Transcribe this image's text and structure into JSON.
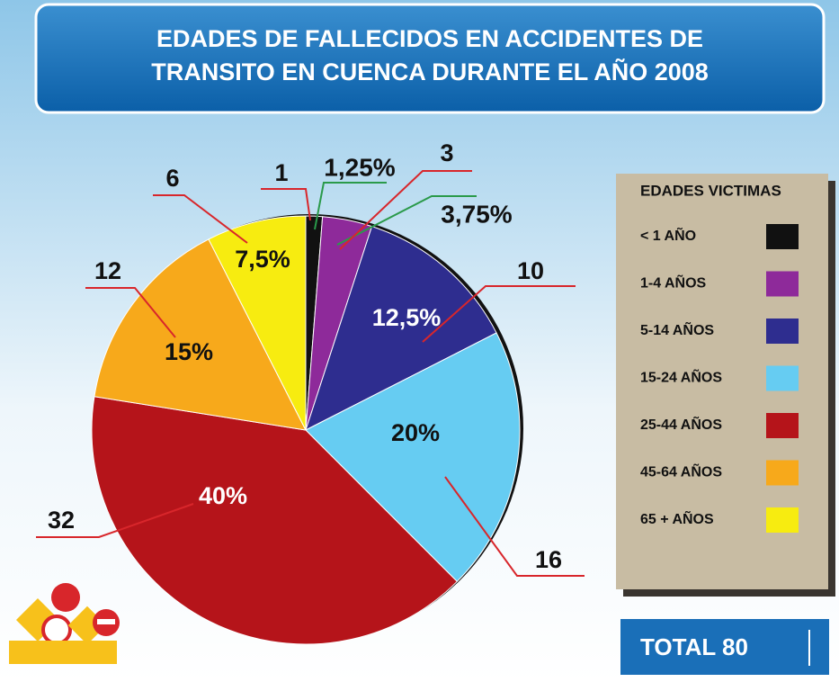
{
  "chart_data": {
    "type": "pie",
    "title": [
      "EDADES DE  FALLECIDOS EN ACCIDENTES DE",
      "TRANSITO EN CUENCA DURANTE EL AÑO 2008"
    ],
    "legend_title": "EDADES VICTIMAS",
    "categories": [
      "< 1 AÑO",
      "1-4 AÑOS",
      "5-14 AÑOS",
      "15-24 AÑOS",
      "25-44 AÑOS",
      "45-64 AÑOS",
      "65 + AÑOS"
    ],
    "values": [
      1.25,
      3.75,
      12.5,
      20,
      40,
      15,
      7.5
    ],
    "value_labels": [
      "1,25%",
      "3,75%",
      "12,5%",
      "20%",
      "40%",
      "15%",
      "7,5%"
    ],
    "counts": [
      1,
      3,
      10,
      16,
      32,
      12,
      6
    ],
    "colors": [
      "#111111",
      "#8e2a9a",
      "#2e2d8f",
      "#66ccf2",
      "#b5141a",
      "#f7a91b",
      "#f7ec10"
    ],
    "total_label": "TOTAL 80",
    "legend": "right"
  }
}
